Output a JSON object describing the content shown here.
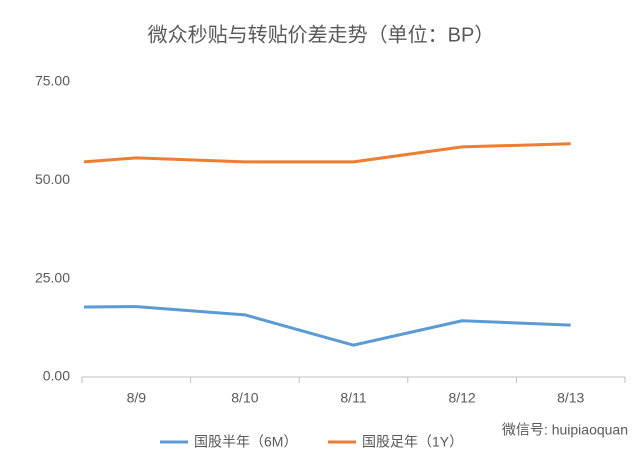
{
  "chart_data": {
    "type": "line",
    "title": "微众秒贴与转贴价差走势（单位：BP）",
    "categories": [
      null,
      "8/9",
      "8/10",
      "8/11",
      "8/12",
      "8/13"
    ],
    "series": [
      {
        "name": "国股半年（6M）",
        "color": "#5b9bd5",
        "values": [
          17.8,
          17.9,
          15.8,
          8.1,
          14.3,
          13.2
        ]
      },
      {
        "name": "国股足年（1Y）",
        "color": "#ed7d31",
        "values": [
          54.7,
          55.7,
          54.7,
          54.7,
          58.5,
          59.3
        ]
      }
    ],
    "ylim": [
      0,
      75
    ],
    "yticks": [
      {
        "value": 0,
        "label": "0.00"
      },
      {
        "value": 25,
        "label": "25.00"
      },
      {
        "value": 50,
        "label": "50.00"
      },
      {
        "value": 75,
        "label": "75.00"
      }
    ],
    "grid": false,
    "legend": "bottom",
    "watermark": "微信号: huipiaoquan"
  }
}
